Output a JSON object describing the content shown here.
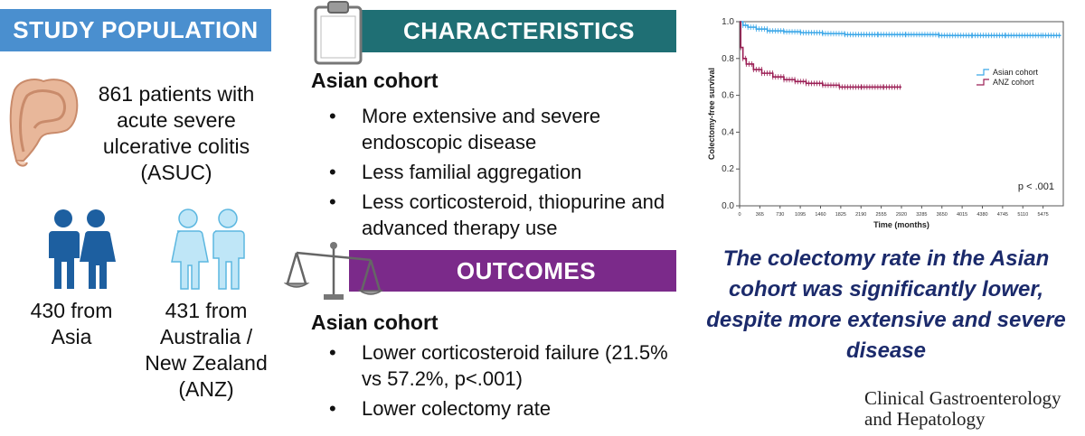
{
  "study_population": {
    "header": "STUDY POPULATION",
    "summary": "861 patients with acute severe ulcerative colitis (ASUC)",
    "asia": "430 from Asia",
    "anz": "431 from Australia / New Zealand (ANZ)",
    "icon_colon": "colon-icon",
    "icon_asia": "people-icon",
    "icon_anz": "people-icon"
  },
  "characteristics": {
    "header": "CHARACTERISTICS",
    "cohort": "Asian cohort",
    "bullets": [
      "More extensive and severe endoscopic disease",
      "Less familial aggregation",
      "Less corticosteroid, thiopurine and advanced therapy use"
    ],
    "icon": "clipboard-icon"
  },
  "outcomes": {
    "header": "OUTCOMES",
    "cohort": "Asian cohort",
    "bullets": [
      "Lower corticosteroid failure (21.5% vs 57.2%, p<.001)",
      "Lower colectomy rate"
    ],
    "icon": "scales-icon"
  },
  "bullet_char": "•",
  "conclusion": "The colectomy rate in the Asian cohort was significantly lower, despite more extensive and severe disease",
  "journal": "Clinical Gastroenterology and Hepatology",
  "colors": {
    "study_header": "#4a8fcf",
    "characteristics_header": "#1f6f74",
    "outcomes_header": "#7b2a8a",
    "conclusion_text": "#1b2a6b",
    "asian_series": "#3ba7e8",
    "anz_series": "#9b1f55"
  },
  "chart_data": {
    "type": "line",
    "xlabel": "Time (months)",
    "ylabel": "Colectomy-free survival",
    "ylim": [
      0,
      1.0
    ],
    "xlim": [
      0,
      5840
    ],
    "yticks": [
      "0.0",
      "0.2",
      "0.4",
      "0.6",
      "0.8",
      "1.0"
    ],
    "xticks": [
      "0",
      "365",
      "730",
      "1095",
      "1460",
      "1825",
      "2190",
      "2555",
      "2920",
      "3285",
      "3650",
      "4015",
      "4380",
      "4745",
      "5110",
      "5475"
    ],
    "annotation": "p < .001",
    "legend_position": "top-right",
    "series": [
      {
        "name": "Asian cohort",
        "x": [
          0,
          60,
          150,
          300,
          500,
          800,
          1100,
          1500,
          1900,
          2500,
          3000,
          3600,
          4200,
          4800,
          5475,
          5800
        ],
        "y": [
          1.0,
          0.98,
          0.97,
          0.96,
          0.95,
          0.945,
          0.94,
          0.935,
          0.93,
          0.93,
          0.93,
          0.925,
          0.925,
          0.925,
          0.925,
          0.925
        ]
      },
      {
        "name": "ANZ cohort",
        "x": [
          0,
          20,
          60,
          120,
          250,
          400,
          600,
          800,
          1000,
          1200,
          1500,
          1800,
          2200,
          2600,
          2920
        ],
        "y": [
          1.0,
          0.86,
          0.8,
          0.77,
          0.74,
          0.72,
          0.7,
          0.685,
          0.675,
          0.665,
          0.655,
          0.645,
          0.645,
          0.645,
          0.645
        ]
      }
    ]
  }
}
